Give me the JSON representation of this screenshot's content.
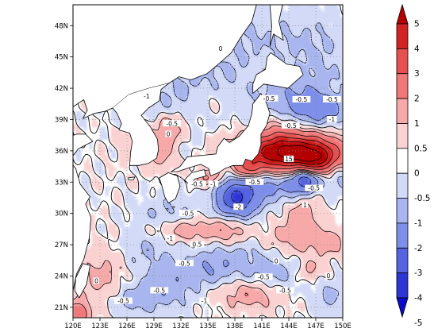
{
  "map": {
    "lon_labels": [
      "120E",
      "123E",
      "126E",
      "129E",
      "132E",
      "135E",
      "138E",
      "141E",
      "144E",
      "147E",
      "150E"
    ],
    "lat_labels": [
      "21N",
      "24N",
      "27N",
      "30N",
      "33N",
      "36N",
      "39N",
      "42N",
      "45N",
      "48N"
    ],
    "lon_range": [
      120,
      150
    ],
    "lat_range": [
      20,
      50
    ],
    "grid": "dotted",
    "contour_labels": [
      {
        "text": "0",
        "lon": 136.4,
        "lat": 45.8
      },
      {
        "text": "-0.5",
        "lon": 131.0,
        "lat": 38.6
      },
      {
        "text": "0",
        "lon": 130.6,
        "lat": 37.6
      },
      {
        "text": "-1",
        "lon": 128.2,
        "lat": 41.2
      },
      {
        "text": "-0.5",
        "lon": 145.4,
        "lat": 40.9
      },
      {
        "text": "-0.5",
        "lon": 141.8,
        "lat": 41.0
      },
      {
        "text": "-0.5",
        "lon": 148.8,
        "lat": 40.9
      },
      {
        "text": "-0.5",
        "lon": 144.2,
        "lat": 38.4
      },
      {
        "text": "-1",
        "lon": 148.8,
        "lat": 39.0
      },
      {
        "text": "15",
        "lon": 144.0,
        "lat": 35.2
      },
      {
        "text": "-0.5",
        "lon": 133.8,
        "lat": 32.8
      },
      {
        "text": "-1",
        "lon": 135.6,
        "lat": 32.8
      },
      {
        "text": "-0.5",
        "lon": 140.2,
        "lat": 33.0
      },
      {
        "text": "-0.5",
        "lon": 146.8,
        "lat": 32.4
      },
      {
        "text": "-2",
        "lon": 138.4,
        "lat": 30.6
      },
      {
        "text": "1",
        "lon": 145.8,
        "lat": 30.8
      },
      {
        "text": "-0.5",
        "lon": 132.8,
        "lat": 30.0
      },
      {
        "text": "-1",
        "lon": 130.8,
        "lat": 27.6
      },
      {
        "text": "0.5",
        "lon": 133.8,
        "lat": 27.0
      },
      {
        "text": "0",
        "lon": 142.6,
        "lat": 25.4
      },
      {
        "text": "-0.5",
        "lon": 132.4,
        "lat": 25.2
      },
      {
        "text": "-0.5",
        "lon": 141.2,
        "lat": 23.9
      },
      {
        "text": "0",
        "lon": 148.4,
        "lat": 24.0
      },
      {
        "text": "-0.5",
        "lon": 129.6,
        "lat": 22.6
      },
      {
        "text": "-0.5",
        "lon": 143.6,
        "lat": 22.6
      },
      {
        "text": "-0.5",
        "lon": 125.6,
        "lat": 21.6
      },
      {
        "text": "-1",
        "lon": 134.6,
        "lat": 21.6
      },
      {
        "text": "0",
        "lon": 122.6,
        "lat": 23.5
      }
    ]
  },
  "colorbar": {
    "labels": [
      "5",
      "4",
      "3",
      "2",
      "1",
      "0.5",
      "0",
      "-0.5",
      "-1",
      "-2",
      "-3",
      "-4",
      "-5"
    ],
    "colors": [
      "#b40000",
      "#d22323",
      "#e65050",
      "#f07878",
      "#f7a8a8",
      "#fbd2d2",
      "#ffffff",
      "#d2daf7",
      "#a8b5ef",
      "#7d8fe8",
      "#5563e0",
      "#2e35d5",
      "#0a0ac8"
    ]
  }
}
